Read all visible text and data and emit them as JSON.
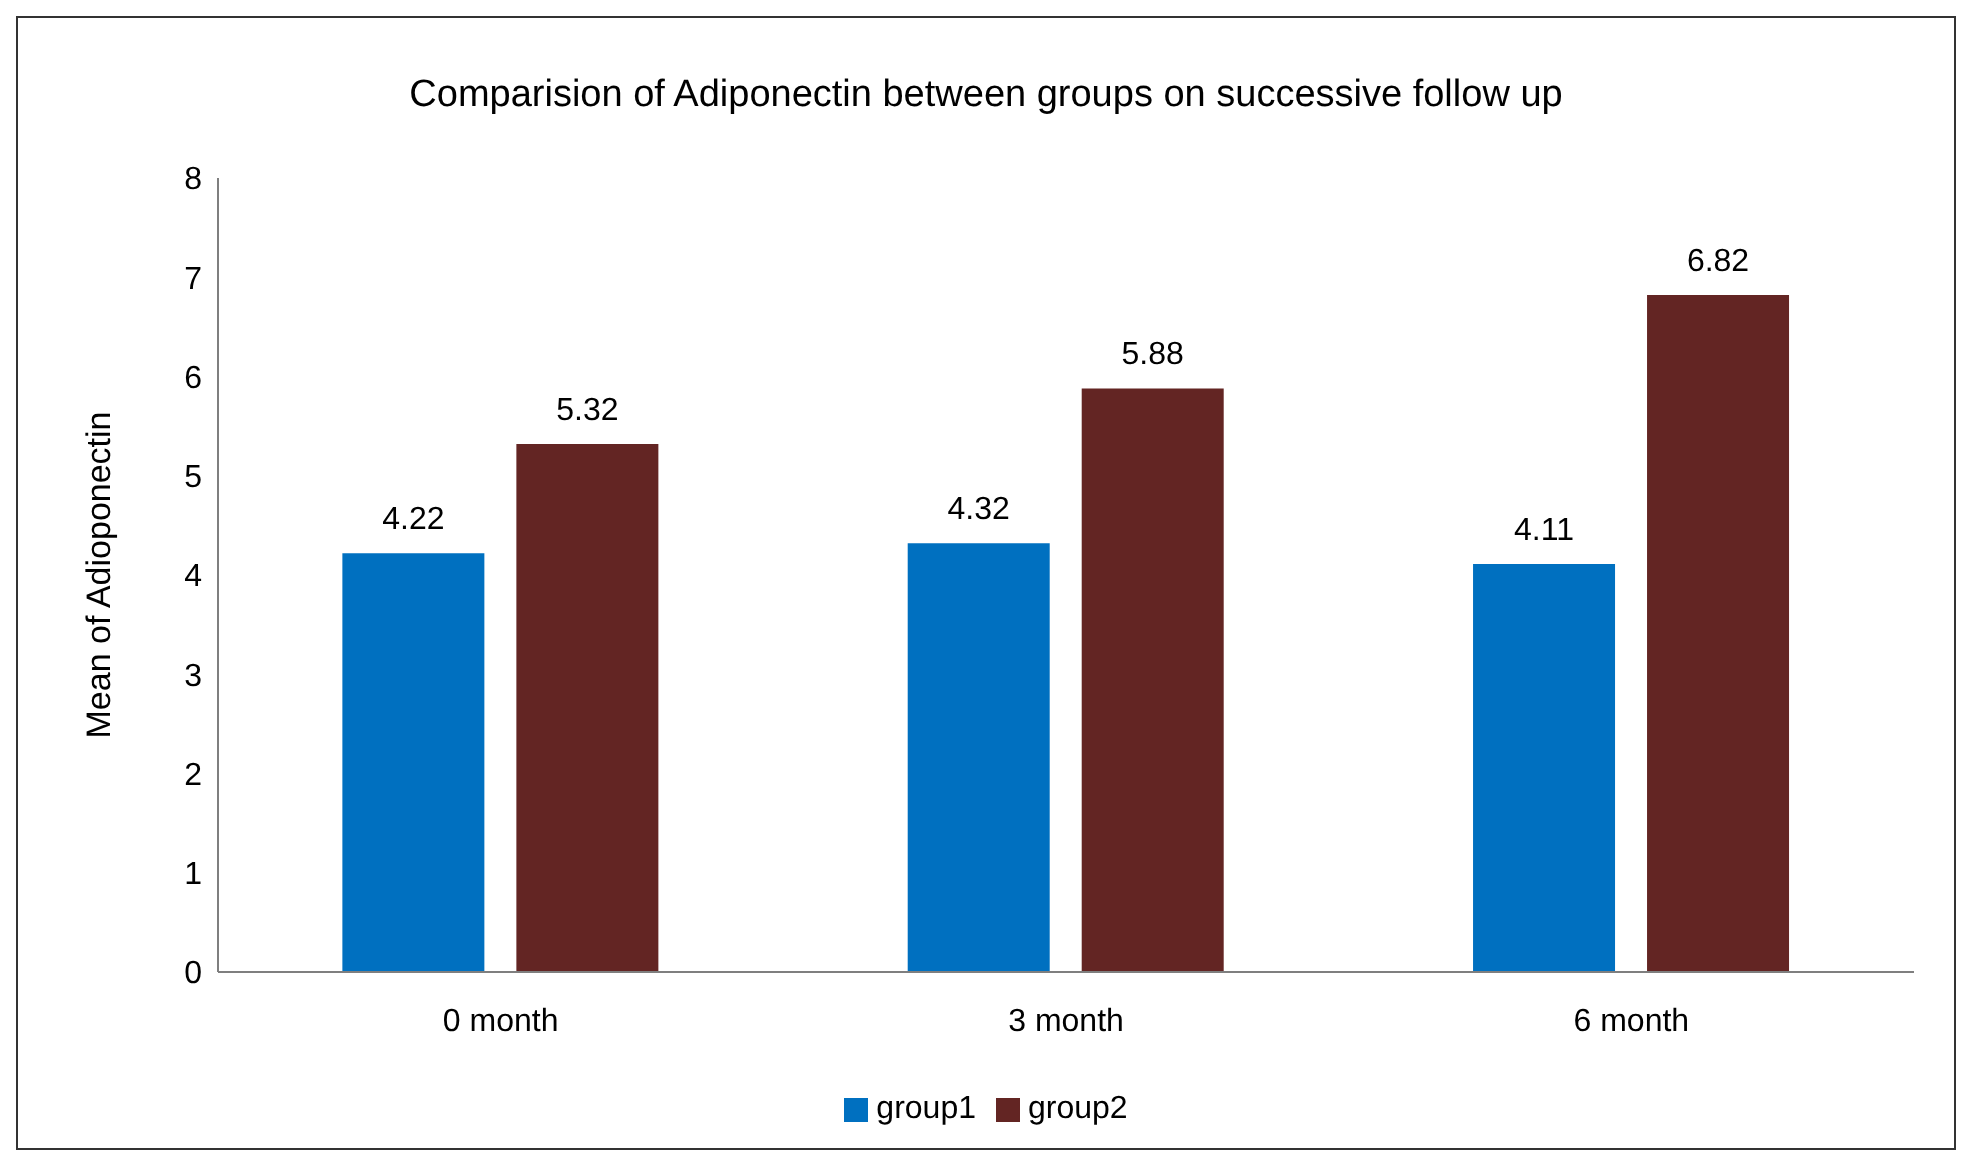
{
  "chart_data": {
    "type": "bar",
    "title": "Comparision of Adiponectin  between groups  on  successive  follow up",
    "ylabel": "Mean of Adioponectin",
    "categories": [
      "0 month",
      "3 month",
      "6 month"
    ],
    "series": [
      {
        "name": "group1",
        "color": "#0070c0",
        "values": [
          4.22,
          4.32,
          4.11
        ]
      },
      {
        "name": "group2",
        "color": "#632523",
        "values": [
          5.32,
          5.88,
          6.82
        ]
      }
    ],
    "ylim": [
      0,
      8
    ],
    "yticks": [
      0,
      1,
      2,
      3,
      4,
      5,
      6,
      7,
      8
    ],
    "grid": false,
    "legend": "bottom",
    "data_labels": true
  }
}
